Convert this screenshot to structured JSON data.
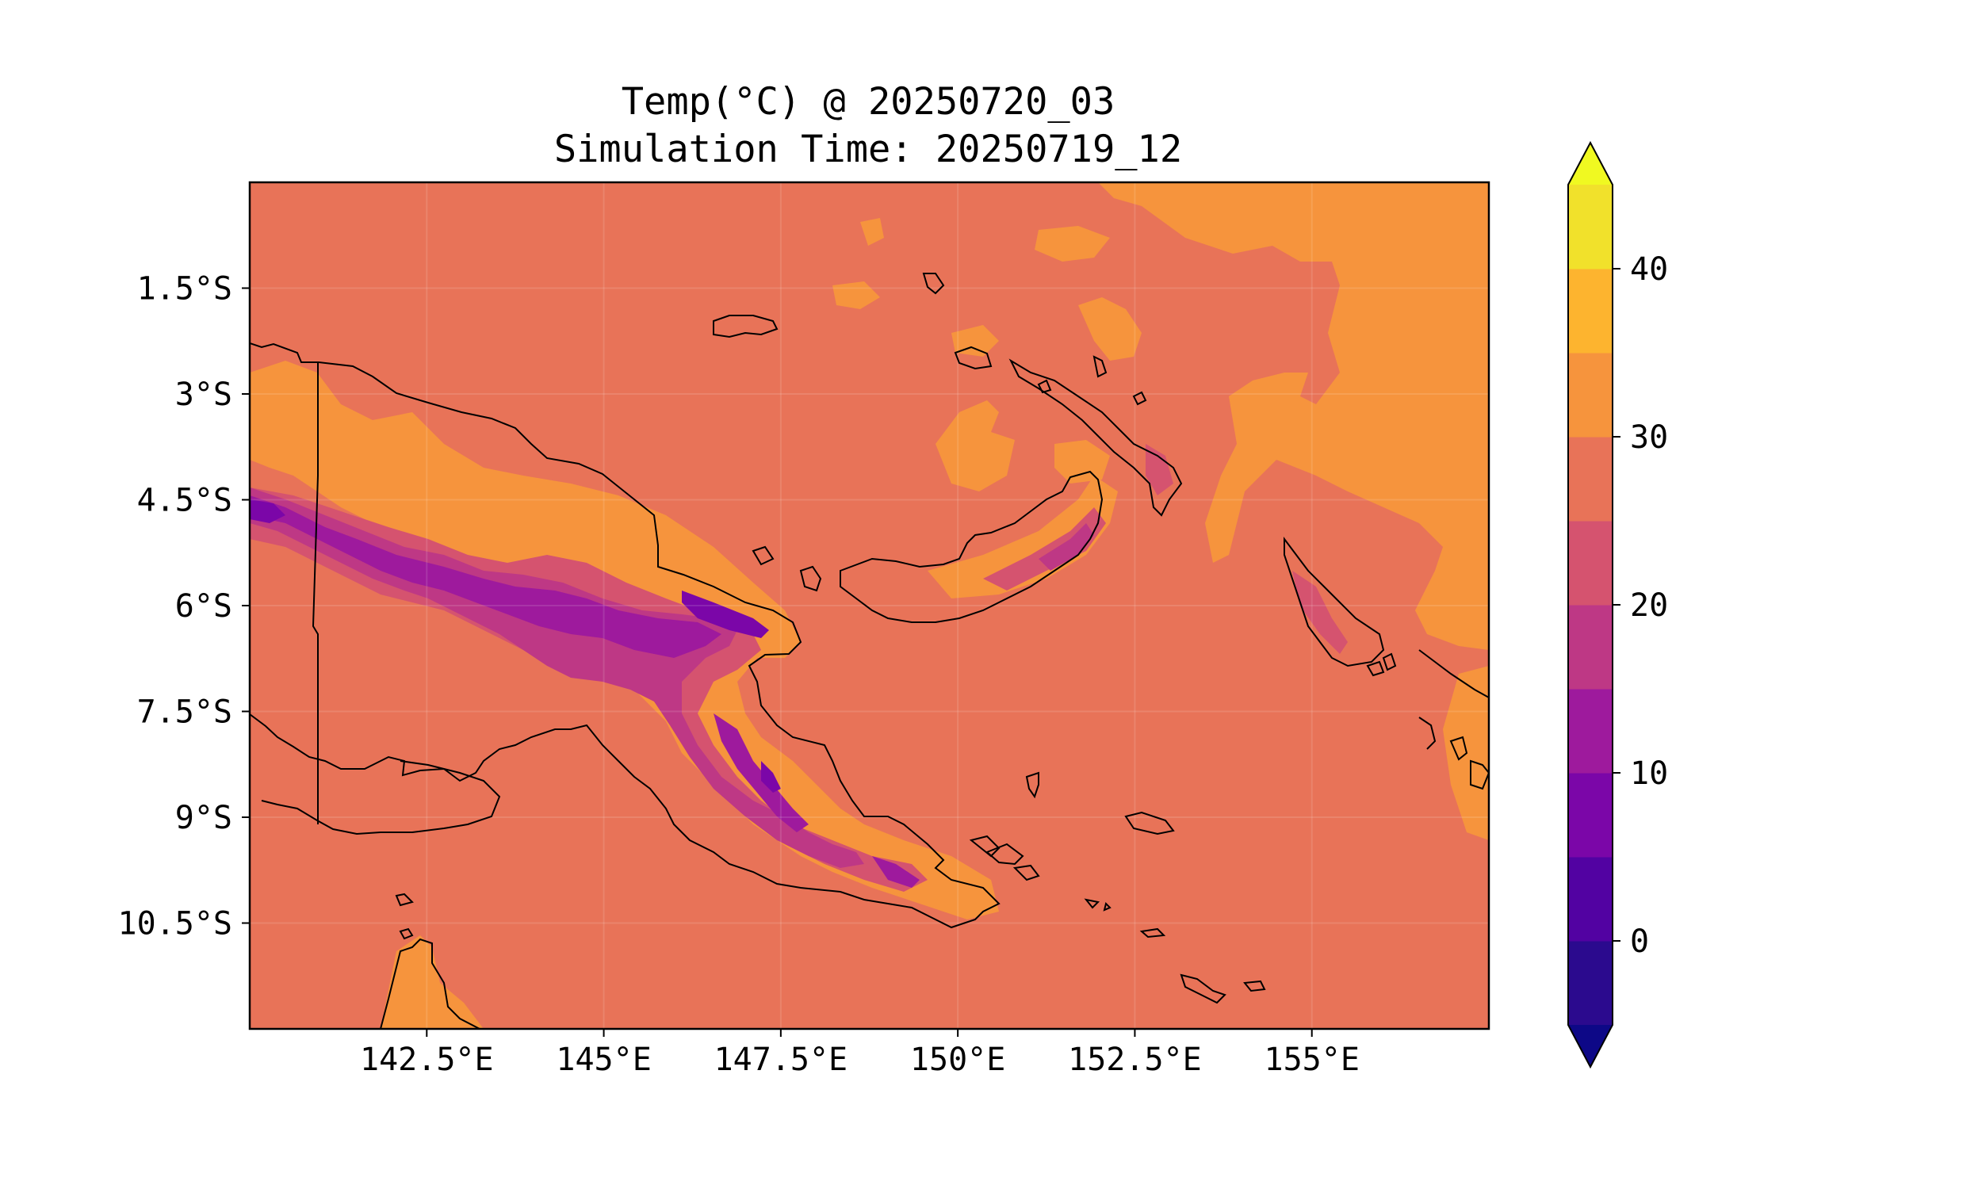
{
  "title": {
    "line1": "Temp(°C) @ 20250720_03",
    "line2": "Simulation Time: 20250719_12"
  },
  "map": {
    "region": "Papua New Guinea",
    "lon_range": [
      140.0,
      157.5
    ],
    "lat_range": [
      -12.0,
      0.0
    ],
    "x_ticks": [
      {
        "value": 142.5,
        "label": "142.5°E"
      },
      {
        "value": 145.0,
        "label": "145°E"
      },
      {
        "value": 147.5,
        "label": "147.5°E"
      },
      {
        "value": 150.0,
        "label": "150°E"
      },
      {
        "value": 152.5,
        "label": "152.5°E"
      },
      {
        "value": 155.0,
        "label": "155°E"
      }
    ],
    "y_ticks": [
      {
        "value": -1.5,
        "label": "1.5°S"
      },
      {
        "value": -3.0,
        "label": "3°S"
      },
      {
        "value": -4.5,
        "label": "4.5°S"
      },
      {
        "value": -6.0,
        "label": "6°S"
      },
      {
        "value": -7.5,
        "label": "7.5°S"
      },
      {
        "value": -9.0,
        "label": "9°S"
      },
      {
        "value": -10.5,
        "label": "10.5°S"
      }
    ],
    "grid": true,
    "background_color": "#e87358"
  },
  "colorbar": {
    "extend": "both",
    "range": [
      -5,
      45
    ],
    "levels": [
      {
        "min": -5,
        "max": 0,
        "color": "#2b0a8e"
      },
      {
        "min": 0,
        "max": 5,
        "color": "#5202a2"
      },
      {
        "min": 5,
        "max": 10,
        "color": "#7b06a8"
      },
      {
        "min": 10,
        "max": 15,
        "color": "#9e1a9d"
      },
      {
        "min": 15,
        "max": 20,
        "color": "#be3885"
      },
      {
        "min": 20,
        "max": 25,
        "color": "#d5536f"
      },
      {
        "min": 25,
        "max": 30,
        "color": "#e87358"
      },
      {
        "min": 30,
        "max": 35,
        "color": "#f6943d"
      },
      {
        "min": 35,
        "max": 40,
        "color": "#fdb42f"
      },
      {
        "min": 40,
        "max": 45,
        "color": "#f1e12b"
      }
    ],
    "under_color": "#0d0887",
    "over_color": "#f0f921",
    "ticks": [
      {
        "value": 0,
        "label": "0"
      },
      {
        "value": 10,
        "label": "10"
      },
      {
        "value": 20,
        "label": "20"
      },
      {
        "value": 30,
        "label": "30"
      },
      {
        "value": 40,
        "label": "40"
      }
    ]
  }
}
